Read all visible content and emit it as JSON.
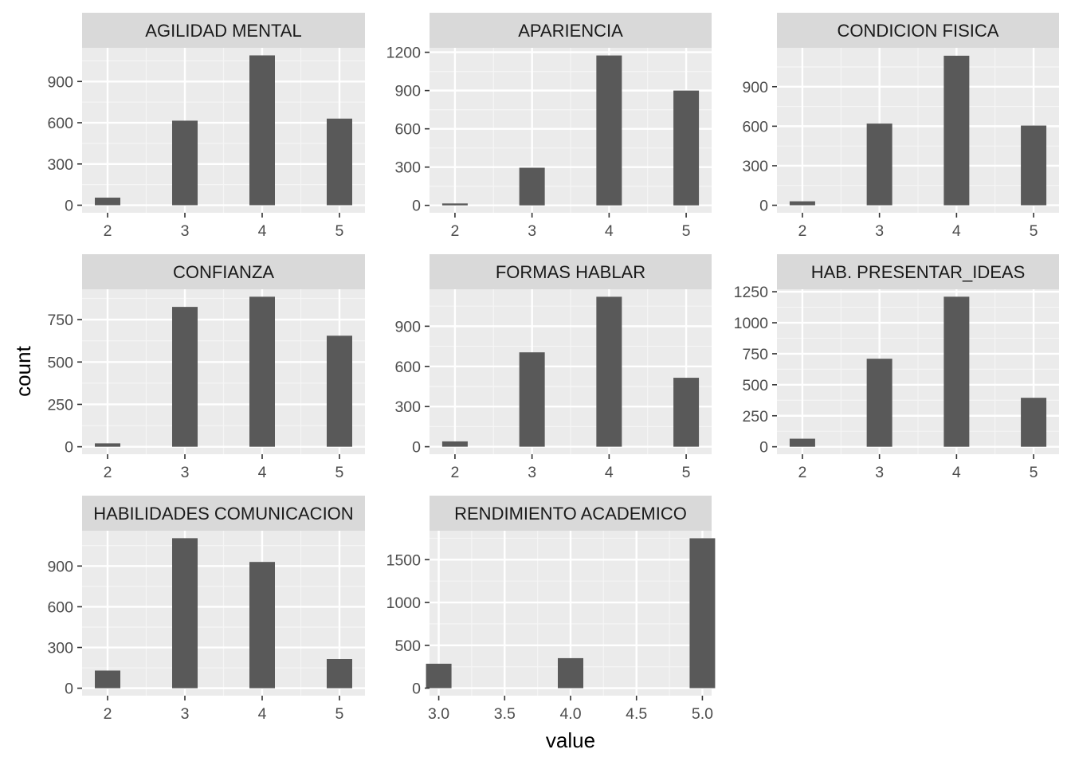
{
  "chart_data": {
    "type": "bar",
    "layout": "facet-wrap-3-columns",
    "xlabel": "value",
    "ylabel": "count",
    "grid": true,
    "colors": {
      "panel": "#ebebeb",
      "strip": "#d9d9d9",
      "bar": "#595959",
      "grid_major": "#ffffff",
      "tick_text": "#4d4d4d"
    },
    "panels": [
      {
        "title": "AGILIDAD MENTAL",
        "x": [
          2,
          3,
          4,
          5
        ],
        "values": [
          55,
          615,
          1090,
          630
        ],
        "xlim": [
          1.67,
          5.33
        ],
        "ylim": [
          -55,
          1145
        ],
        "xticks": [
          "2",
          "3",
          "4",
          "5"
        ],
        "yticks": [
          0,
          300,
          600,
          900
        ]
      },
      {
        "title": "APARIENCIA",
        "x": [
          2,
          3,
          4,
          5
        ],
        "values": [
          15,
          295,
          1175,
          900
        ],
        "xlim": [
          1.67,
          5.33
        ],
        "ylim": [
          -58,
          1235
        ],
        "xticks": [
          "2",
          "3",
          "4",
          "5"
        ],
        "yticks": [
          0,
          300,
          600,
          900,
          1200
        ]
      },
      {
        "title": "CONDICION FISICA",
        "x": [
          2,
          3,
          4,
          5
        ],
        "values": [
          30,
          620,
          1135,
          605
        ],
        "xlim": [
          1.67,
          5.33
        ],
        "ylim": [
          -57,
          1195
        ],
        "xticks": [
          "2",
          "3",
          "4",
          "5"
        ],
        "yticks": [
          0,
          300,
          600,
          900
        ]
      },
      {
        "title": "CONFIANZA",
        "x": [
          2,
          3,
          4,
          5
        ],
        "values": [
          20,
          825,
          885,
          655
        ],
        "xlim": [
          1.67,
          5.33
        ],
        "ylim": [
          -44,
          929
        ],
        "xticks": [
          "2",
          "3",
          "4",
          "5"
        ],
        "yticks": [
          0,
          250,
          500,
          750
        ]
      },
      {
        "title": "FORMAS HABLAR",
        "x": [
          2,
          3,
          4,
          5
        ],
        "values": [
          40,
          705,
          1120,
          515
        ],
        "xlim": [
          1.67,
          5.33
        ],
        "ylim": [
          -56,
          1176
        ],
        "xticks": [
          "2",
          "3",
          "4",
          "5"
        ],
        "yticks": [
          0,
          300,
          600,
          900
        ]
      },
      {
        "title": "HAB. PRESENTAR_IDEAS",
        "x": [
          2,
          3,
          4,
          5
        ],
        "values": [
          65,
          710,
          1210,
          395
        ],
        "xlim": [
          1.67,
          5.33
        ],
        "ylim": [
          -60,
          1270
        ],
        "xticks": [
          "2",
          "3",
          "4",
          "5"
        ],
        "yticks": [
          0,
          250,
          500,
          750,
          1000,
          1250
        ]
      },
      {
        "title": "HABILIDADES COMUNICACION",
        "x": [
          2,
          3,
          4,
          5
        ],
        "values": [
          130,
          1105,
          930,
          215
        ],
        "xlim": [
          1.67,
          5.33
        ],
        "ylim": [
          -55,
          1160
        ],
        "xticks": [
          "2",
          "3",
          "4",
          "5"
        ],
        "yticks": [
          0,
          300,
          600,
          900
        ]
      },
      {
        "title": "RENDIMIENTO ACADEMICO",
        "x": [
          3.0,
          4.0,
          5.0
        ],
        "values": [
          285,
          350,
          1750
        ],
        "xlim": [
          2.93,
          5.07
        ],
        "ylim": [
          -88,
          1838
        ],
        "xticks": [
          "3.0",
          "3.5",
          "4.0",
          "4.5",
          "5.0"
        ],
        "yticks": [
          0,
          500,
          1000,
          1500
        ]
      }
    ]
  }
}
